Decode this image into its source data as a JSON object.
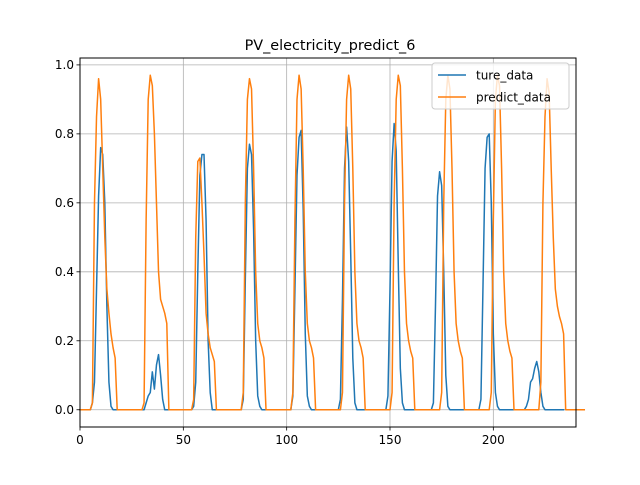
{
  "chart_data": {
    "type": "line",
    "title": "PV_electricity_predict_6",
    "xlabel": "",
    "ylabel": "",
    "xlim": [
      0,
      240
    ],
    "ylim": [
      -0.05,
      1.02
    ],
    "xticks": [
      0,
      50,
      100,
      150,
      200
    ],
    "xtick_labels": [
      "0",
      "50",
      "100",
      "150",
      "200"
    ],
    "yticks": [
      0.0,
      0.2,
      0.4,
      0.6,
      0.8,
      1.0
    ],
    "ytick_labels": [
      "0.0",
      "0.2",
      "0.4",
      "0.6",
      "0.8",
      "1.0"
    ],
    "grid": true,
    "legend": "top-right",
    "x_start": 0,
    "x_step": 1,
    "series": [
      {
        "name": "ture_data",
        "color": "#1f77b4",
        "values": [
          0,
          0,
          0,
          0,
          0,
          0,
          0.02,
          0.08,
          0.35,
          0.62,
          0.76,
          0.74,
          0.6,
          0.3,
          0.08,
          0.01,
          0,
          0,
          0,
          0,
          0,
          0,
          0,
          0,
          0,
          0,
          0,
          0,
          0,
          0,
          0,
          0,
          0.02,
          0.04,
          0.05,
          0.11,
          0.06,
          0.13,
          0.16,
          0.1,
          0.03,
          0,
          0,
          0,
          0,
          0,
          0,
          0,
          0,
          0,
          0,
          0,
          0,
          0,
          0,
          0.01,
          0.08,
          0.4,
          0.68,
          0.74,
          0.74,
          0.55,
          0.2,
          0.05,
          0,
          0,
          0,
          0,
          0,
          0,
          0,
          0,
          0,
          0,
          0,
          0,
          0,
          0,
          0,
          0.03,
          0.38,
          0.7,
          0.77,
          0.74,
          0.52,
          0.2,
          0.04,
          0.01,
          0,
          0,
          0,
          0,
          0,
          0,
          0,
          0,
          0,
          0,
          0,
          0,
          0,
          0,
          0,
          0.04,
          0.35,
          0.68,
          0.79,
          0.81,
          0.58,
          0.22,
          0.04,
          0.01,
          0,
          0,
          0,
          0,
          0,
          0,
          0,
          0,
          0,
          0,
          0,
          0,
          0,
          0,
          0.03,
          0.32,
          0.7,
          0.82,
          0.72,
          0.45,
          0.15,
          0.02,
          0,
          0,
          0,
          0,
          0,
          0,
          0,
          0,
          0,
          0,
          0,
          0,
          0,
          0,
          0,
          0.04,
          0.35,
          0.72,
          0.83,
          0.75,
          0.42,
          0.12,
          0.02,
          0,
          0,
          0,
          0,
          0,
          0,
          0,
          0,
          0,
          0,
          0,
          0,
          0,
          0,
          0.02,
          0.3,
          0.62,
          0.69,
          0.65,
          0.4,
          0.1,
          0.01,
          0,
          0,
          0,
          0,
          0,
          0,
          0,
          0,
          0,
          0,
          0,
          0,
          0,
          0,
          0,
          0.03,
          0.36,
          0.7,
          0.79,
          0.8,
          0.6,
          0.22,
          0.05,
          0.01,
          0,
          0,
          0,
          0,
          0,
          0,
          0,
          0,
          0,
          0,
          0,
          0,
          0,
          0.01,
          0.03,
          0.08,
          0.09,
          0.12,
          0.14,
          0.11,
          0.05,
          0.01,
          0,
          0,
          0,
          0,
          0,
          0,
          0,
          0,
          0,
          0
        ]
      },
      {
        "name": "predict_data",
        "color": "#ff7f0e",
        "values": [
          0,
          0,
          0,
          0,
          0,
          0,
          0.02,
          0.6,
          0.85,
          0.96,
          0.9,
          0.7,
          0.5,
          0.35,
          0.28,
          0.22,
          0.18,
          0.15,
          0,
          0,
          0,
          0,
          0,
          0,
          0,
          0,
          0,
          0,
          0,
          0,
          0,
          0.02,
          0.55,
          0.9,
          0.97,
          0.94,
          0.8,
          0.6,
          0.4,
          0.32,
          0.3,
          0.28,
          0.25,
          0,
          0,
          0,
          0,
          0,
          0,
          0,
          0,
          0,
          0,
          0,
          0,
          0.03,
          0.5,
          0.72,
          0.73,
          0.6,
          0.45,
          0.28,
          0.22,
          0.18,
          0.16,
          0.14,
          0,
          0,
          0,
          0,
          0,
          0,
          0,
          0,
          0,
          0,
          0,
          0,
          0,
          0.05,
          0.6,
          0.9,
          0.96,
          0.93,
          0.7,
          0.4,
          0.25,
          0.2,
          0.18,
          0.15,
          0,
          0,
          0,
          0,
          0,
          0,
          0,
          0,
          0,
          0,
          0,
          0,
          0,
          0.05,
          0.55,
          0.9,
          0.97,
          0.93,
          0.7,
          0.4,
          0.25,
          0.2,
          0.18,
          0.15,
          0,
          0,
          0,
          0,
          0,
          0,
          0,
          0,
          0,
          0,
          0,
          0,
          0,
          0.05,
          0.6,
          0.9,
          0.97,
          0.93,
          0.7,
          0.4,
          0.25,
          0.2,
          0.18,
          0.15,
          0,
          0,
          0,
          0,
          0,
          0,
          0,
          0,
          0,
          0,
          0,
          0,
          0,
          0.05,
          0.6,
          0.9,
          0.97,
          0.94,
          0.7,
          0.4,
          0.25,
          0.2,
          0.17,
          0.15,
          0,
          0,
          0,
          0,
          0,
          0,
          0,
          0,
          0,
          0,
          0,
          0,
          0,
          0.05,
          0.6,
          0.9,
          0.97,
          0.93,
          0.7,
          0.4,
          0.25,
          0.2,
          0.17,
          0.15,
          0,
          0,
          0,
          0,
          0,
          0,
          0,
          0,
          0,
          0,
          0,
          0,
          0,
          0.05,
          0.55,
          0.9,
          0.97,
          0.94,
          0.7,
          0.4,
          0.25,
          0.2,
          0.17,
          0.15,
          0,
          0,
          0,
          0,
          0,
          0,
          0,
          0,
          0,
          0,
          0,
          0,
          0,
          0.08,
          0.6,
          0.85,
          0.96,
          0.92,
          0.7,
          0.5,
          0.35,
          0.3,
          0.27,
          0.25,
          0.22,
          0,
          0,
          0,
          0,
          0,
          0,
          0,
          0,
          0,
          0
        ]
      }
    ]
  }
}
